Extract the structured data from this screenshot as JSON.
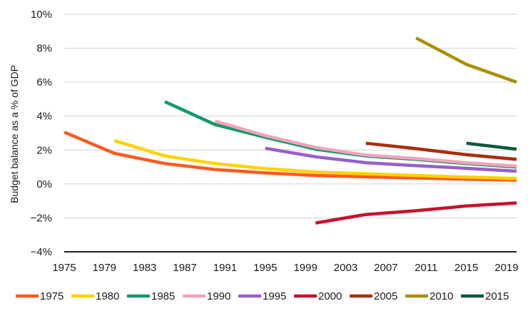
{
  "chart_data": {
    "type": "line",
    "ylabel": "Budget balance as a % of GDP",
    "xlabel": "",
    "xlim": [
      1975,
      2020
    ],
    "ylim": [
      -4,
      10
    ],
    "x_ticks": [
      1975,
      1979,
      1983,
      1987,
      1991,
      1995,
      1999,
      2003,
      2007,
      2011,
      2015,
      2019
    ],
    "x_tick_labels": [
      "1975",
      "1979",
      "1983",
      "1987",
      "1991",
      "1995",
      "1999",
      "2003",
      "2007",
      "2011",
      "2015",
      "2019"
    ],
    "y_ticks": [
      -4,
      -2,
      0,
      2,
      4,
      6,
      8,
      10
    ],
    "y_tick_labels": [
      "−4%",
      "−2%",
      "0%",
      "2%",
      "4%",
      "6%",
      "8%",
      "10%"
    ],
    "grid": "horizontal",
    "legend_position": "bottom",
    "series": [
      {
        "name": "1975",
        "color": "#ff5a1f",
        "x": [
          1975,
          1980,
          1985,
          1990,
          1995,
          2000,
          2005,
          2010,
          2015,
          2020
        ],
        "y": [
          3.05,
          1.8,
          1.2,
          0.85,
          0.65,
          0.5,
          0.42,
          0.35,
          0.28,
          0.22
        ]
      },
      {
        "name": "1980",
        "color": "#ffd200",
        "x": [
          1980,
          1985,
          1990,
          1995,
          2000,
          2005,
          2010,
          2015,
          2020
        ],
        "y": [
          2.55,
          1.65,
          1.2,
          0.9,
          0.7,
          0.6,
          0.5,
          0.4,
          0.32
        ]
      },
      {
        "name": "1985",
        "color": "#119a67",
        "x": [
          1985,
          1990,
          1995,
          2000,
          2005,
          2010,
          2015,
          2020
        ],
        "y": [
          4.85,
          3.5,
          2.75,
          2.05,
          1.65,
          1.45,
          1.2,
          1.0
        ]
      },
      {
        "name": "1990",
        "color": "#f4a3bb",
        "x": [
          1990,
          1995,
          2000,
          2005,
          2010,
          2015,
          2020
        ],
        "y": [
          3.7,
          2.85,
          2.15,
          1.7,
          1.5,
          1.25,
          1.05
        ]
      },
      {
        "name": "1995",
        "color": "#9660c8",
        "x": [
          1995,
          2000,
          2005,
          2010,
          2015,
          2020
        ],
        "y": [
          2.1,
          1.6,
          1.25,
          1.08,
          0.92,
          0.75
        ]
      },
      {
        "name": "2000",
        "color": "#c8102e",
        "x": [
          2000,
          2005,
          2010,
          2015,
          2020
        ],
        "y": [
          -2.3,
          -1.8,
          -1.58,
          -1.3,
          -1.12
        ]
      },
      {
        "name": "2005",
        "color": "#a5300f",
        "x": [
          2005,
          2010,
          2015,
          2020
        ],
        "y": [
          2.4,
          2.08,
          1.72,
          1.45
        ]
      },
      {
        "name": "2010",
        "color": "#a89000",
        "x": [
          2010,
          2015,
          2020
        ],
        "y": [
          8.6,
          7.05,
          6.0
        ]
      },
      {
        "name": "2015",
        "color": "#0b5a3e",
        "x": [
          2015,
          2020
        ],
        "y": [
          2.4,
          2.05
        ]
      }
    ]
  }
}
